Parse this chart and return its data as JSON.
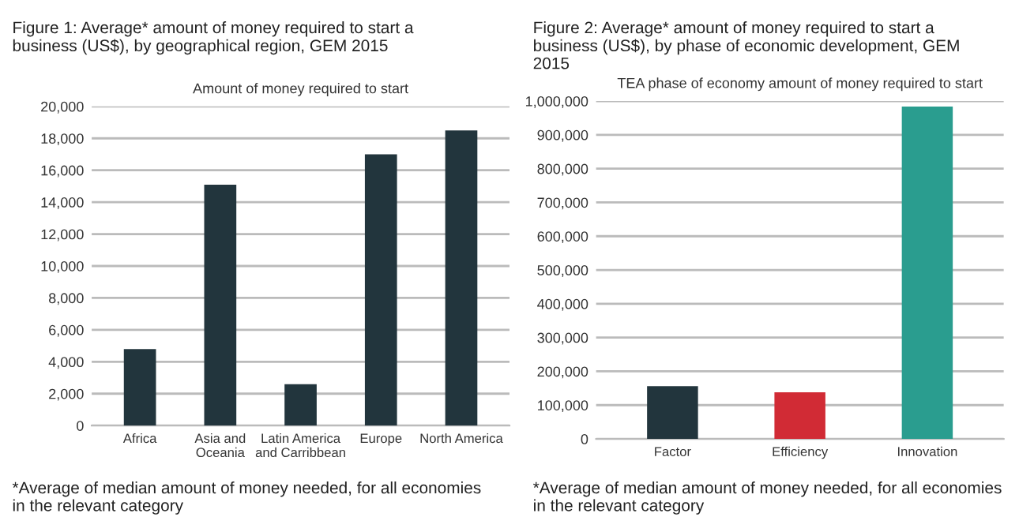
{
  "chart_data": [
    {
      "type": "bar",
      "title": "Figure 1: Average* amount of money required to start a business (US$), by geographical region, GEM 2015",
      "subtitle": "Amount of money required to start",
      "categories": [
        "Africa",
        "Asia and\nOceania",
        "Latin America\nand Carribbean",
        "Europe",
        "North America"
      ],
      "values": [
        4800,
        15100,
        2600,
        17000,
        18500
      ],
      "color": "#22353d",
      "ylim": [
        0,
        20000
      ],
      "yticks": [
        {
          "value": 0,
          "label": "0"
        },
        {
          "value": 2000,
          "label": "2,000"
        },
        {
          "value": 4000,
          "label": "4,000"
        },
        {
          "value": 6000,
          "label": "6,000"
        },
        {
          "value": 8000,
          "label": "8,000"
        },
        {
          "value": 10000,
          "label": "10,000"
        },
        {
          "value": 12000,
          "label": "12,000"
        },
        {
          "value": 14000,
          "label": "14,000"
        },
        {
          "value": 16000,
          "label": "16,000"
        },
        {
          "value": 18000,
          "label": "18,000"
        },
        {
          "value": 20000,
          "label": "20,000"
        }
      ],
      "grid": "y",
      "annotations": [
        "*Average of median amount of money needed, for all economies in the relevant category"
      ]
    },
    {
      "type": "bar",
      "title": "Figure 2: Average* amount of money required to start a business (US$), by phase of economic development, GEM 2015",
      "subtitle": "TEA phase of economy amount of money required to start",
      "categories": [
        "Factor",
        "Efficiency",
        "Innovation"
      ],
      "values": [
        156000,
        138000,
        984000
      ],
      "colors": [
        "#22353d",
        "#d12b35",
        "#2a9d8f"
      ],
      "ylim": [
        0,
        1000000
      ],
      "yticks": [
        {
          "value": 0,
          "label": "0"
        },
        {
          "value": 100000,
          "label": "100,000"
        },
        {
          "value": 200000,
          "label": "200,000"
        },
        {
          "value": 300000,
          "label": "300,000"
        },
        {
          "value": 400000,
          "label": "400,000"
        },
        {
          "value": 500000,
          "label": "500,000"
        },
        {
          "value": 600000,
          "label": "600,000"
        },
        {
          "value": 700000,
          "label": "700,000"
        },
        {
          "value": 800000,
          "label": "800,000"
        },
        {
          "value": 900000,
          "label": "900,000"
        },
        {
          "value": 1000000,
          "label": "1,000,000"
        }
      ],
      "grid": "y",
      "annotations": [
        "*Average of median amount of money needed, for all economies in the relevant category"
      ]
    }
  ]
}
